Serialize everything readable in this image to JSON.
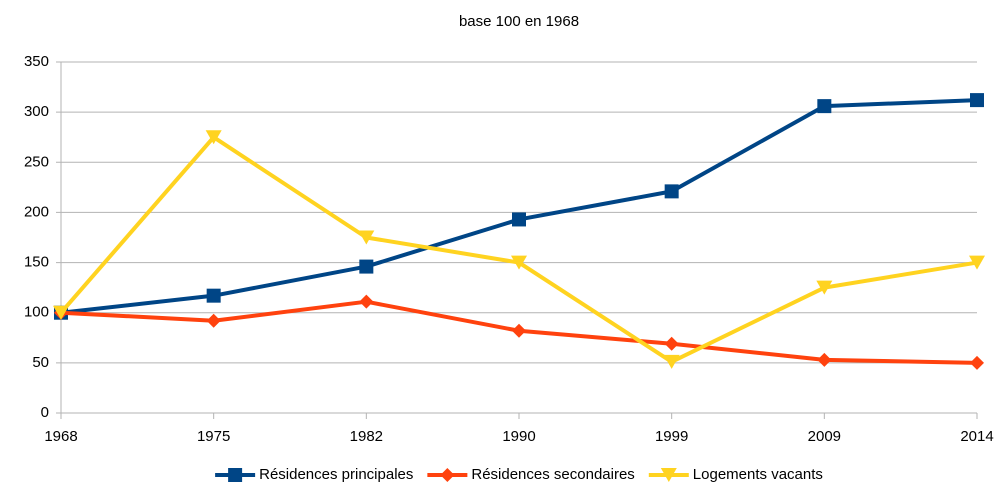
{
  "chart_data": {
    "type": "line",
    "title": "base 100 en 1968",
    "categories": [
      "1968",
      "1975",
      "1982",
      "1990",
      "1999",
      "2009",
      "2014"
    ],
    "series": [
      {
        "name": "Résidences principales",
        "color": "#004586",
        "marker": "square",
        "values": [
          100,
          117,
          146,
          193,
          221,
          306,
          312
        ]
      },
      {
        "name": "Résidences secondaires",
        "color": "#ff420e",
        "marker": "diamond",
        "values": [
          100,
          92,
          111,
          82,
          69,
          53,
          50
        ]
      },
      {
        "name": "Logements vacants",
        "color": "#ffd320",
        "marker": "triangle-down",
        "values": [
          100,
          275,
          175,
          150,
          51,
          125,
          150
        ]
      }
    ],
    "ylim": [
      0,
      350
    ],
    "yticks": [
      0,
      50,
      100,
      150,
      200,
      250,
      300,
      350
    ],
    "grid": true,
    "legend": "bottom"
  }
}
